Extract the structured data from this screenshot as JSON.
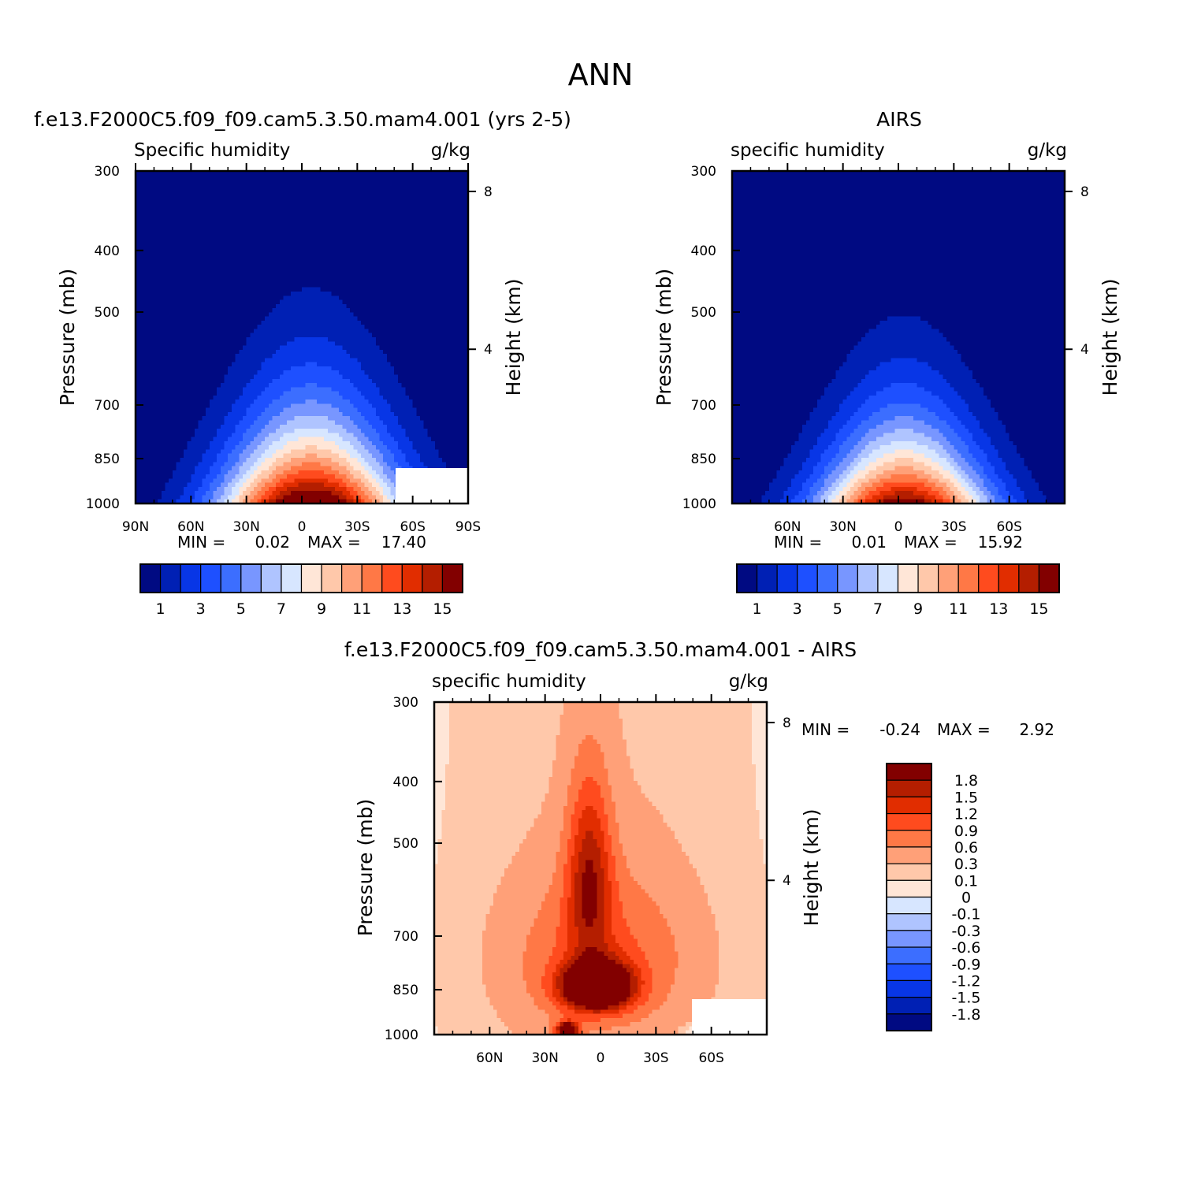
{
  "title": "ANN",
  "panels": [
    {
      "case_title": "f.e13.F2000C5.f09_f09.cam5.3.50.mam4.001 (yrs 2-5)",
      "var_label": "Specific humidity",
      "units": "g/kg",
      "ylabel": "Pressure (mb)",
      "ylabel_right": "Height (km)",
      "yticks": [
        "300",
        "400",
        "500",
        "700",
        "850",
        "1000"
      ],
      "yticks_right": [
        "8",
        "4"
      ],
      "xticks": [
        "90N",
        "60N",
        "30N",
        "0",
        "30S",
        "60S",
        "90S"
      ],
      "min_label": "MIN =",
      "min_value": "0.02",
      "max_label": "MAX =",
      "max_value": "17.40",
      "colorbar_labels": [
        "1",
        "3",
        "5",
        "7",
        "9",
        "11",
        "13",
        "15"
      ]
    },
    {
      "case_title": "AIRS",
      "var_label": "specific humidity",
      "units": "g/kg",
      "ylabel": "Pressure (mb)",
      "ylabel_right": "Height (km)",
      "yticks": [
        "300",
        "400",
        "500",
        "700",
        "850",
        "1000"
      ],
      "yticks_right": [
        "8",
        "4"
      ],
      "xticks": [
        "60N",
        "30N",
        "0",
        "30S",
        "60S"
      ],
      "min_label": "MIN =",
      "min_value": "0.01",
      "max_label": "MAX =",
      "max_value": "15.92",
      "colorbar_labels": [
        "1",
        "3",
        "5",
        "7",
        "9",
        "11",
        "13",
        "15"
      ]
    },
    {
      "case_title": "f.e13.F2000C5.f09_f09.cam5.3.50.mam4.001 - AIRS",
      "var_label": "specific humidity",
      "units": "g/kg",
      "ylabel": "Pressure (mb)",
      "ylabel_right": "Height (km)",
      "yticks": [
        "300",
        "400",
        "500",
        "700",
        "850",
        "1000"
      ],
      "yticks_right": [
        "8",
        "4"
      ],
      "xticks": [
        "60N",
        "30N",
        "0",
        "30S",
        "60S"
      ],
      "min_label": "MIN =",
      "min_value": "-0.24",
      "max_label": "MAX =",
      "max_value": "2.92",
      "colorbar_labels": [
        "1.8",
        "1.5",
        "1.2",
        "0.9",
        "0.6",
        "0.3",
        "0.1",
        "0",
        "-0.1",
        "-0.3",
        "-0.6",
        "-0.9",
        "-1.2",
        "-1.5",
        "-1.8"
      ]
    }
  ],
  "palettes": {
    "abs": [
      "#000a82",
      "#0020b4",
      "#0836e6",
      "#1e50ff",
      "#3c6eff",
      "#7896ff",
      "#afc4ff",
      "#d7e6ff",
      "#ffe6d7",
      "#ffc8aa",
      "#ffa078",
      "#ff7846",
      "#ff4b1e",
      "#e12d00",
      "#b41e00",
      "#820000"
    ],
    "diff": [
      "#820000",
      "#b41e00",
      "#e12d00",
      "#ff4b1e",
      "#ff7846",
      "#ffa078",
      "#ffc8aa",
      "#ffe6d7",
      "#d7e6ff",
      "#afc4ff",
      "#7896ff",
      "#3c6eff",
      "#1e50ff",
      "#0836e6",
      "#0020b4",
      "#000a82"
    ]
  },
  "chart_data": [
    {
      "type": "heatmap",
      "title": "f.e13.F2000C5.f09_f09.cam5.3.50.mam4.001 (yrs 2-5)",
      "xlabel": "",
      "ylabel": "Pressure (mb)",
      "x_range": [
        "90N",
        "90S"
      ],
      "y_range_mb": [
        300,
        1000
      ],
      "contour_levels": [
        1,
        2,
        3,
        4,
        5,
        6,
        7,
        8,
        9,
        10,
        11,
        12,
        13,
        14,
        15
      ],
      "contour_levels_shown": [
        1,
        3,
        5,
        7,
        9,
        11,
        13,
        15
      ],
      "min": 0.02,
      "max": 17.4
    },
    {
      "type": "heatmap",
      "title": "AIRS",
      "xlabel": "",
      "ylabel": "Pressure (mb)",
      "y_range_mb": [
        300,
        1000
      ],
      "contour_levels": [
        1,
        2,
        3,
        4,
        5,
        6,
        7,
        8,
        9,
        10,
        11,
        12,
        13,
        14,
        15
      ],
      "contour_levels_shown": [
        1,
        3,
        5,
        7,
        9,
        11,
        13,
        15
      ],
      "min": 0.01,
      "max": 15.92
    },
    {
      "type": "heatmap",
      "title": "f.e13.F2000C5.f09_f09.cam5.3.50.mam4.001 - AIRS",
      "xlabel": "",
      "ylabel": "Pressure (mb)",
      "y_range_mb": [
        300,
        1000
      ],
      "contour_levels": [
        1.8,
        1.5,
        1.2,
        0.9,
        0.6,
        0.3,
        0.1,
        0,
        -0.1,
        -0.3,
        -0.6,
        -0.9,
        -1.2,
        -1.5,
        -1.8
      ],
      "min": -0.24,
      "max": 2.92
    }
  ]
}
